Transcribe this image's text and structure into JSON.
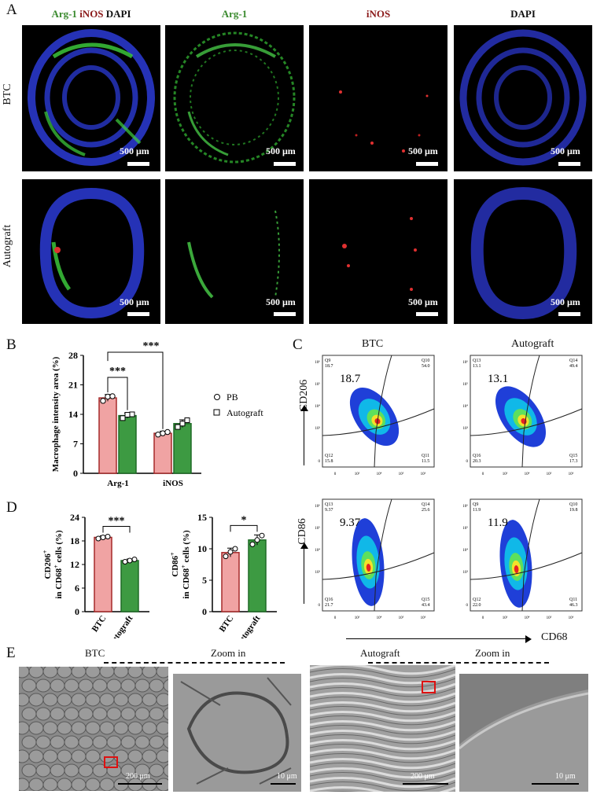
{
  "panels": {
    "a": "A",
    "b": "B",
    "c": "C",
    "d": "D",
    "e": "E"
  },
  "panel_a": {
    "headers": {
      "merge_arg": "Arg-1",
      "merge_inos": "iNOS",
      "merge_dapi": "DAPI",
      "arg": "Arg-1",
      "inos": "iNOS",
      "dapi": "DAPI"
    },
    "row_labels": [
      "BTC",
      "Autograft"
    ],
    "scale": "500 μm"
  },
  "chart_b": {
    "type": "bar",
    "categories": [
      "Arg-1",
      "iNOS"
    ],
    "series": [
      {
        "name": "PB",
        "values": [
          17.9,
          9.5
        ],
        "errors": [
          0.8,
          0.5
        ],
        "points": [
          [
            17.2,
            18.2,
            18.3
          ],
          [
            9.2,
            9.5,
            9.8
          ]
        ],
        "color": "#f0a3a3",
        "edge": "#a52a2a"
      },
      {
        "name": "Autograft",
        "values": [
          13.7,
          11.8
        ],
        "errors": [
          0.6,
          0.9
        ],
        "points": [
          [
            13.1,
            13.9,
            14.0
          ],
          [
            11.0,
            11.8,
            12.6
          ]
        ],
        "color": "#3d9a42",
        "edge": "#1e6b26"
      }
    ],
    "ylabel": "Macrophage intensity area (%)",
    "ylim": [
      0,
      28
    ],
    "yticks": [
      "0",
      "7",
      "14",
      "21",
      "28"
    ],
    "sig": [
      "***",
      "***"
    ]
  },
  "chart_d1": {
    "type": "bar",
    "categories": [
      "BTC",
      "Autograft"
    ],
    "values": [
      18.9,
      13.0
    ],
    "errors": [
      0.4,
      0.4
    ],
    "points": [
      [
        18.6,
        18.9,
        19.1
      ],
      [
        12.7,
        13.0,
        13.3
      ]
    ],
    "ylabel_main": "CD206",
    "ylabel_sup": "+",
    "ylabel_line2a": "in CD68",
    "ylabel_line2b": " cells (%)",
    "ylim": [
      0,
      24
    ],
    "yticks": [
      "0",
      "6",
      "12",
      "18",
      "24"
    ],
    "sig": "***"
  },
  "chart_d2": {
    "type": "bar",
    "categories": [
      "BTC",
      "Autograft"
    ],
    "values": [
      9.4,
      11.4
    ],
    "errors": [
      0.7,
      0.8
    ],
    "points": [
      [
        8.8,
        9.5,
        10.0
      ],
      [
        10.7,
        11.4,
        12.1
      ]
    ],
    "ylabel_main": "CD86",
    "ylabel_sup": "+",
    "ylabel_line2a": "in CD68",
    "ylabel_line2b": " cells (%)",
    "ylim": [
      0,
      15
    ],
    "yticks": [
      "0",
      "5",
      "10",
      "15"
    ],
    "sig": "*"
  },
  "panel_c": {
    "col_titles": [
      "BTC",
      "Autograft"
    ],
    "ylabel_top": "CD206",
    "ylabel_bottom": "CD86",
    "xlabel": "CD68",
    "plots": [
      {
        "big": "18.7",
        "q": [
          "Q9",
          "18.7",
          "Q10",
          "54.0",
          "Q12",
          "15.8",
          "Q11",
          "11.5"
        ]
      },
      {
        "big": "13.1",
        "q": [
          "Q13",
          "13.1",
          "Q14",
          "49.4",
          "Q16",
          "20.3",
          "Q15",
          "17.3"
        ]
      },
      {
        "big": "9.37",
        "q": [
          "Q13",
          "9.37",
          "Q14",
          "25.6",
          "Q16",
          "21.7",
          "Q15",
          "43.4"
        ]
      },
      {
        "big": "11.9",
        "q": [
          "Q9",
          "11.9",
          "Q10",
          "19.8",
          "Q12",
          "22.0",
          "Q11",
          "46.3"
        ]
      }
    ]
  },
  "panel_e": {
    "btc": "BTC",
    "autograft": "Autograft",
    "zoom": "Zoom in",
    "scale_200": "200 μm",
    "scale_10": "10 μm"
  },
  "colors": {
    "green": "#3a8a2e",
    "red": "#8b1a1a"
  }
}
